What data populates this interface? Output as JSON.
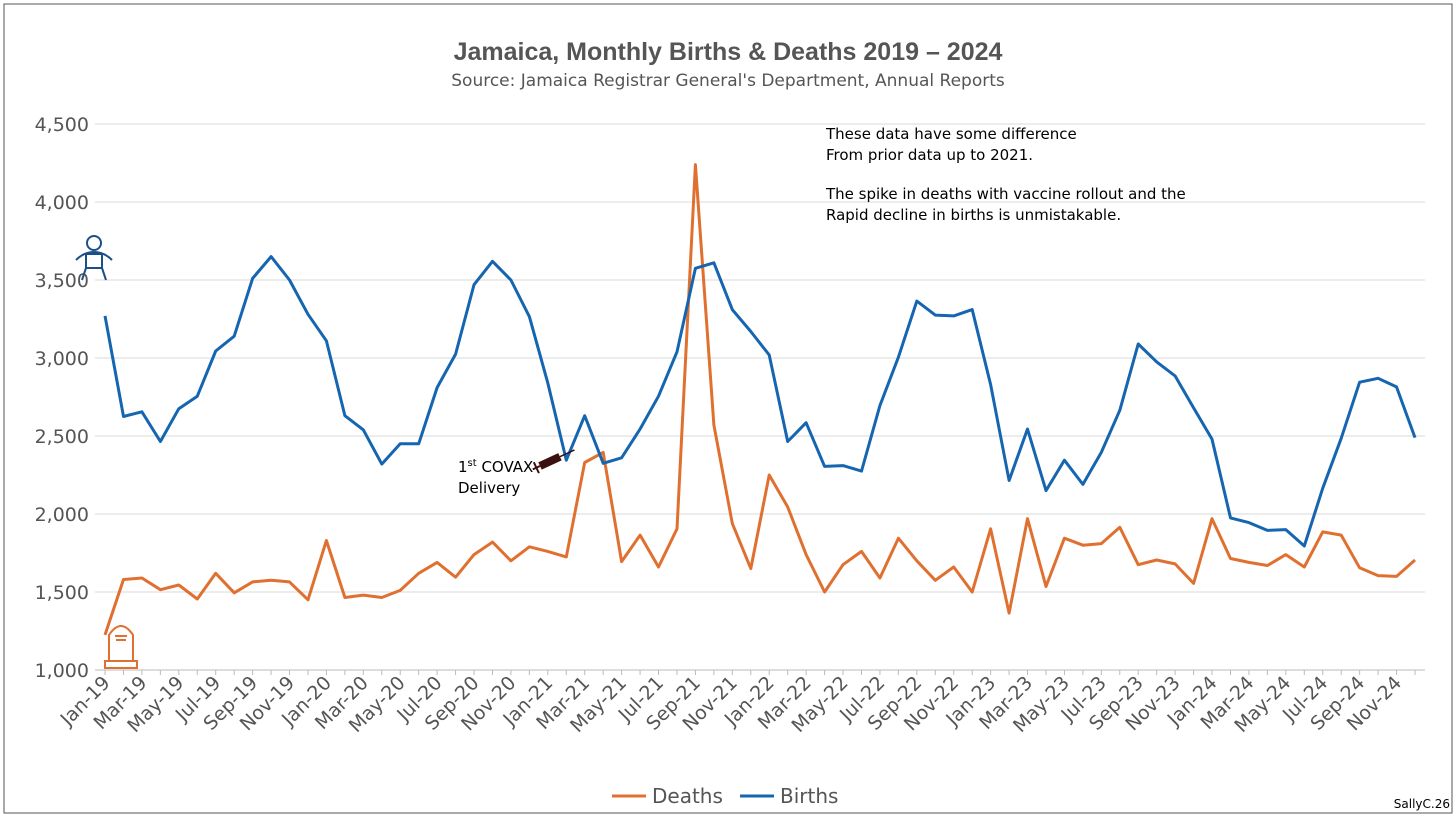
{
  "chart_data": {
    "type": "line",
    "title": "Jamaica, Monthly Births & Deaths 2019 – 2024",
    "subtitle": "Source: Jamaica Registrar General's Department, Annual Reports",
    "xlabel": "",
    "ylabel": "",
    "ylim": [
      1000,
      4500
    ],
    "yticks": [
      "1,000",
      "1,500",
      "2,000",
      "2,500",
      "3,000",
      "3,500",
      "4,000",
      "4,500"
    ],
    "ytick_values": [
      1000,
      1500,
      2000,
      2500,
      3000,
      3500,
      4000,
      4500
    ],
    "grid": true,
    "legend_position": "bottom",
    "x": [
      "Jan-19",
      "Feb-19",
      "Mar-19",
      "Apr-19",
      "May-19",
      "Jun-19",
      "Jul-19",
      "Aug-19",
      "Sep-19",
      "Oct-19",
      "Nov-19",
      "Dec-19",
      "Jan-20",
      "Feb-20",
      "Mar-20",
      "Apr-20",
      "May-20",
      "Jun-20",
      "Jul-20",
      "Aug-20",
      "Sep-20",
      "Oct-20",
      "Nov-20",
      "Dec-20",
      "Jan-21",
      "Feb-21",
      "Mar-21",
      "Apr-21",
      "May-21",
      "Jun-21",
      "Jul-21",
      "Aug-21",
      "Sep-21",
      "Oct-21",
      "Nov-21",
      "Dec-21",
      "Jan-22",
      "Feb-22",
      "Mar-22",
      "Apr-22",
      "May-22",
      "Jun-22",
      "Jul-22",
      "Aug-22",
      "Sep-22",
      "Oct-22",
      "Nov-22",
      "Dec-22",
      "Jan-23",
      "Feb-23",
      "Mar-23",
      "Apr-23",
      "May-23",
      "Jun-23",
      "Jul-23",
      "Aug-23",
      "Sep-23",
      "Oct-23",
      "Nov-23",
      "Dec-23",
      "Jan-24",
      "Feb-24",
      "Mar-24",
      "Apr-24",
      "May-24",
      "Jun-24",
      "Jul-24",
      "Aug-24",
      "Sep-24",
      "Oct-24",
      "Nov-24",
      "Dec-24"
    ],
    "series": [
      {
        "name": "Deaths",
        "color": "#E07030",
        "values": [
          1225,
          1580,
          1590,
          1515,
          1545,
          1455,
          1620,
          1495,
          1565,
          1575,
          1565,
          1450,
          1830,
          1465,
          1480,
          1465,
          1510,
          1620,
          1690,
          1595,
          1740,
          1820,
          1700,
          1790,
          1760,
          1725,
          2330,
          2395,
          1695,
          1865,
          1660,
          1905,
          4240,
          2570,
          1940,
          1650,
          2250,
          2045,
          1740,
          1500,
          1675,
          1760,
          1590,
          1845,
          1700,
          1575,
          1660,
          1500,
          1905,
          1365,
          1970,
          1535,
          1845,
          1800,
          1810,
          1915,
          1675,
          1705,
          1680,
          1555,
          1970,
          1715,
          1690,
          1670,
          1740,
          1660,
          1885,
          1865,
          1655,
          1605,
          1600,
          1705
        ]
      },
      {
        "name": "Births",
        "color": "#1565B0",
        "values": [
          3270,
          2625,
          2655,
          2465,
          2675,
          2755,
          3045,
          3140,
          3510,
          3650,
          3500,
          3280,
          3110,
          2630,
          2540,
          2320,
          2450,
          2450,
          2810,
          3025,
          3470,
          3620,
          3500,
          3265,
          2840,
          2345,
          2630,
          2325,
          2360,
          2545,
          2755,
          3040,
          3575,
          3610,
          3310,
          3170,
          3020,
          2465,
          2585,
          2305,
          2310,
          2275,
          2695,
          3005,
          3365,
          3275,
          3270,
          3310,
          2830,
          2215,
          2545,
          2150,
          2345,
          2190,
          2395,
          2665,
          3090,
          2975,
          2885,
          2680,
          2480,
          1975,
          1945,
          1895,
          1900,
          1795,
          2165,
          2485,
          2845,
          2870,
          2815,
          2490
        ]
      }
    ],
    "annotations": {
      "note_lines": [
        "These data have some difference",
        "From prior data up to 2021.",
        "The spike in deaths with vaccine rollout and the",
        "Rapid decline in births is unmistakable."
      ],
      "covax_sup": "st",
      "covax_num": "1",
      "covax_line1": " COVAX",
      "covax_line2": "Delivery"
    },
    "credit": "SallyC.26"
  }
}
